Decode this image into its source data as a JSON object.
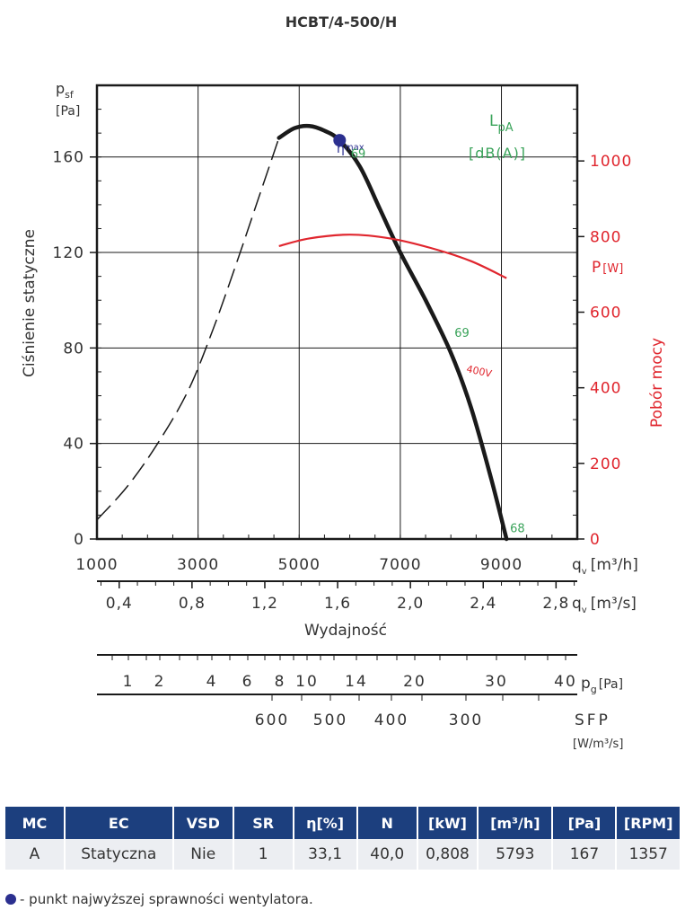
{
  "chart_data": {
    "type": "line",
    "title": "HCBT/4-500/H",
    "ylabel_left_unit_top": "p",
    "ylabel_left_unit_sub": "sf",
    "ylabel_left_unit": "[Pa]",
    "ylabel_left": "Ciśnienie statyczne",
    "ylabel_right_unit": "P",
    "ylabel_right_unit_sub": "[W]",
    "ylabel_right": "Pobór mocy",
    "xlabel_m3h": "q",
    "xlabel_m3h_sub": "v",
    "xlabel_m3h_unit": "[m³/h]",
    "xlabel_m3s": "q",
    "xlabel_m3s_sub": "v",
    "xlabel_m3s_unit": "[m³/s]",
    "xlabel_name": "Wydajność",
    "lpa_label": "L",
    "lpa_label_sub": "pA",
    "lpa_unit": "[dB(A)]",
    "eta_label": "η",
    "eta_label_sub": "max",
    "voltage_label": "400V",
    "x_range": [
      1000,
      10500
    ],
    "y_left_range": [
      0,
      190
    ],
    "y_right_range": [
      0,
      1200
    ],
    "x_ticks": [
      "1000",
      "3000",
      "5000",
      "7000",
      "9000"
    ],
    "x_tick_values": [
      1000,
      3000,
      5000,
      7000,
      9000
    ],
    "x2_ticks": [
      "0,4",
      "0,8",
      "1,2",
      "1,6",
      "2,0",
      "2,4",
      "2,8"
    ],
    "x2_tick_values": [
      0.4,
      0.8,
      1.2,
      1.6,
      2.0,
      2.4,
      2.8
    ],
    "y_left_ticks": [
      "0",
      "40",
      "80",
      "120",
      "160"
    ],
    "y_left_tick_values": [
      0,
      40,
      80,
      120,
      160
    ],
    "y_right_ticks": [
      "0",
      "200",
      "400",
      "600",
      "800",
      "1000"
    ],
    "y_right_tick_values": [
      0,
      200,
      400,
      600,
      800,
      1000
    ],
    "series": [
      {
        "role": "pressure-unstable",
        "x": [
          1000,
          1600,
          2200,
          2800,
          3300,
          3800,
          4200,
          4600
        ],
        "y": [
          8,
          22,
          40,
          62,
          88,
          118,
          143,
          168
        ]
      },
      {
        "role": "pressure",
        "x": [
          4600,
          4900,
          5200,
          5500,
          5800,
          6200,
          6600,
          7000,
          7500,
          8000,
          8400,
          8800,
          9100
        ],
        "y": [
          168,
          172,
          173,
          171,
          167,
          156,
          138,
          120,
          100,
          78,
          55,
          25,
          0
        ]
      },
      {
        "role": "power",
        "x": [
          4600,
          5200,
          6000,
          6800,
          7600,
          8400,
          9100
        ],
        "y": [
          775,
          795,
          805,
          795,
          770,
          735,
          690
        ]
      }
    ],
    "eta_max_point": {
      "x": 5800,
      "y": 167
    },
    "lpa_annotations": [
      {
        "text": "69",
        "x": 5950,
        "y": 162
      },
      {
        "text": "69",
        "x": 8000,
        "y": 87
      },
      {
        "text": "68",
        "x": 9100,
        "y": 5
      }
    ],
    "pg_ticks": [
      "1",
      "2",
      "4",
      "6",
      "8",
      "10",
      "14",
      "20",
      "30",
      "40"
    ],
    "pg_label": "p",
    "pg_label_sub": "g",
    "pg_unit": "[Pa]",
    "sfp_ticks": [
      "600",
      "500",
      "400",
      "300"
    ],
    "sfp_label": "SFP",
    "sfp_unit": "[W/m³/s]"
  },
  "table": {
    "headers": [
      "MC",
      "EC",
      "VSD",
      "SR",
      "η[%]",
      "N",
      "[kW]",
      "[m³/h]",
      "[Pa]",
      "[RPM]"
    ],
    "row": [
      "A",
      "Statyczna",
      "Nie",
      "1",
      "33,1",
      "40,0",
      "0,808",
      "5793",
      "167",
      "1357"
    ]
  },
  "note": "- punkt najwyższej sprawności wentylatora.",
  "colors": {
    "pressure": "#1a1a1a",
    "power": "#e0262e",
    "lpa": "#3aa35a",
    "eta_point": "#2b2f8f",
    "table_header": "#1c3f7e"
  }
}
